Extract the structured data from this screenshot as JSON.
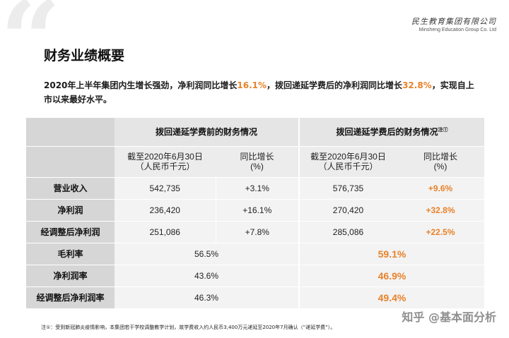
{
  "logo": {
    "cn": "民生教育集团有限公司",
    "en": "Minsheng Education Group Co. Ltd"
  },
  "page_title": "财务业绩概要",
  "summary": {
    "part1": "2020年上半年集团内生增长强劲，净利润同比增长",
    "hl1": "16.1%",
    "part2": "，拨回递延学费后的净利润同比增长",
    "hl2": "32.8%",
    "part3": "，实现自上市以来最好水平。"
  },
  "table": {
    "group1_header": "拨回递延学费前的财务情况",
    "group2_header": "拨回递延学费后的财务情况",
    "group2_note": "注①",
    "sub_date_line1": "截至2020年6月30日",
    "sub_date_line2": "（人民币千元）",
    "sub_growth_line1": "同比增长",
    "sub_growth_line2": "(%)",
    "rows": [
      {
        "label": "营业收入",
        "v1": "542,735",
        "g1": "+3.1%",
        "v2": "576,735",
        "g2": "+9.6%"
      },
      {
        "label": "净利润",
        "v1": "236,420",
        "g1": "+16.1%",
        "v2": "270,420",
        "g2": "+32.8%"
      },
      {
        "label": "经调整后净利润",
        "v1": "251,086",
        "g1": "+7.8%",
        "v2": "285,086",
        "g2": "+22.5%"
      }
    ],
    "rate_rows": [
      {
        "label": "毛利率",
        "r1": "56.5%",
        "r2": "59.1%"
      },
      {
        "label": "净利润率",
        "r1": "43.6%",
        "r2": "46.9%"
      },
      {
        "label": "经调整后净利润率",
        "r1": "46.3%",
        "r2": "49.4%"
      }
    ]
  },
  "footnote": "注①：受到新冠肺炎疫情影响，本集团若干学校调整教学计划，故学费收入约人民币3,400万元递延至2020年7月确认（“递延学费”）。",
  "watermark": "知乎 @基本面分析",
  "colors": {
    "highlight": "#e8822a",
    "header_gray": "#d6d6d6",
    "cell_gray": "#f3f3f3"
  }
}
